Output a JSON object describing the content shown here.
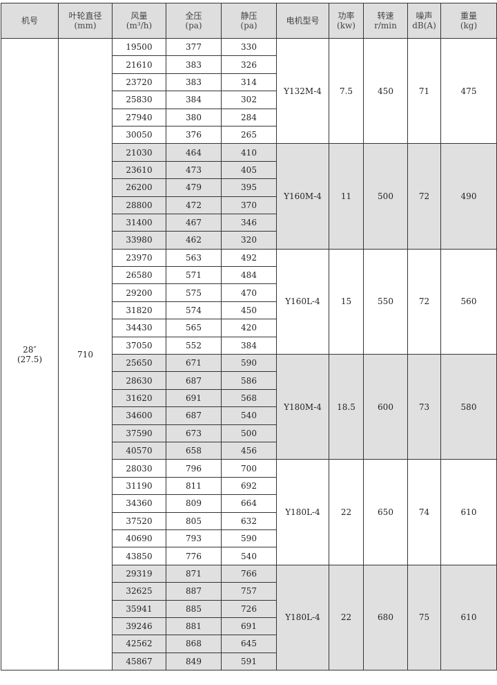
{
  "headers": [
    "机号",
    "叶轮直径\n(mm)",
    "风量\n(m³/h)",
    "全压\n(pa)",
    "静压\n(pa)",
    "电机型号",
    "功率\n(kw)",
    "转速\nr/min",
    "噪声\ndB(A)",
    "重量\n(kg)"
  ],
  "machine_no": "28″\n(27.5)",
  "impeller_diameter": "710",
  "groups": [
    {
      "motor": "Y132M-4",
      "power": "7.5",
      "speed": "450",
      "noise": "71",
      "weight": "475",
      "shaded": false,
      "rows": [
        [
          "19500",
          "377",
          "330"
        ],
        [
          "21610",
          "383",
          "326"
        ],
        [
          "23720",
          "383",
          "314"
        ],
        [
          "25830",
          "384",
          "302"
        ],
        [
          "27940",
          "380",
          "284"
        ],
        [
          "30050",
          "376",
          "265"
        ]
      ]
    },
    {
      "motor": "Y160M-4",
      "power": "11",
      "speed": "500",
      "noise": "72",
      "weight": "490",
      "shaded": true,
      "rows": [
        [
          "21030",
          "464",
          "410"
        ],
        [
          "23610",
          "473",
          "405"
        ],
        [
          "26200",
          "479",
          "395"
        ],
        [
          "28800",
          "472",
          "370"
        ],
        [
          "31400",
          "467",
          "346"
        ],
        [
          "33980",
          "462",
          "320"
        ]
      ]
    },
    {
      "motor": "Y160L-4",
      "power": "15",
      "speed": "550",
      "noise": "72",
      "weight": "560",
      "shaded": false,
      "rows": [
        [
          "23970",
          "563",
          "492"
        ],
        [
          "26580",
          "571",
          "484"
        ],
        [
          "29200",
          "575",
          "470"
        ],
        [
          "31820",
          "574",
          "450"
        ],
        [
          "34430",
          "565",
          "420"
        ],
        [
          "37050",
          "552",
          "384"
        ]
      ]
    },
    {
      "motor": "Y180M-4",
      "power": "18.5",
      "speed": "600",
      "noise": "73",
      "weight": "580",
      "shaded": true,
      "rows": [
        [
          "25650",
          "671",
          "590"
        ],
        [
          "28630",
          "687",
          "586"
        ],
        [
          "31620",
          "691",
          "568"
        ],
        [
          "34600",
          "687",
          "540"
        ],
        [
          "37590",
          "673",
          "500"
        ],
        [
          "40570",
          "658",
          "456"
        ]
      ]
    },
    {
      "motor": "Y180L-4",
      "power": "22",
      "speed": "650",
      "noise": "74",
      "weight": "610",
      "shaded": false,
      "rows": [
        [
          "28030",
          "796",
          "700"
        ],
        [
          "31190",
          "811",
          "692"
        ],
        [
          "34360",
          "809",
          "664"
        ],
        [
          "37520",
          "805",
          "632"
        ],
        [
          "40690",
          "793",
          "590"
        ],
        [
          "43850",
          "776",
          "540"
        ]
      ]
    },
    {
      "motor": "Y180L-4",
      "power": "22",
      "speed": "680",
      "noise": "75",
      "weight": "610",
      "shaded": true,
      "rows": [
        [
          "29319",
          "871",
          "766"
        ],
        [
          "32625",
          "887",
          "757"
        ],
        [
          "35941",
          "885",
          "726"
        ],
        [
          "39246",
          "881",
          "691"
        ],
        [
          "42562",
          "868",
          "645"
        ],
        [
          "45867",
          "849",
          "591"
        ]
      ]
    }
  ]
}
